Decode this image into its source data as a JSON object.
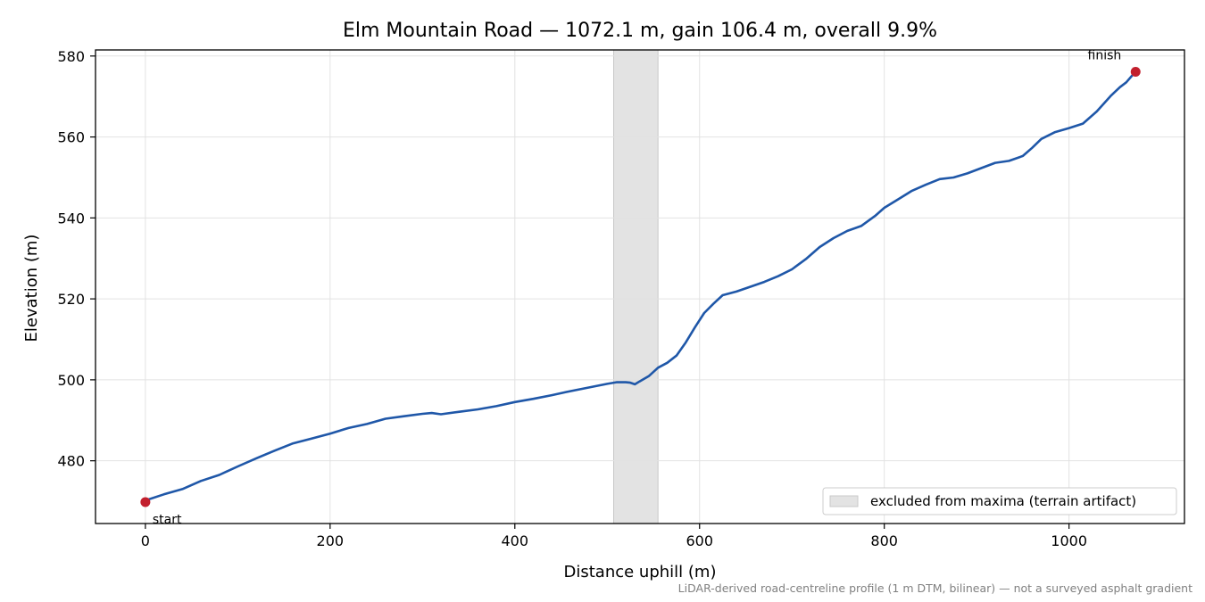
{
  "chart_data": {
    "type": "line",
    "title": "Elm Mountain Road — 1072.1 m, gain 106.4 m, overall 9.9%",
    "xlabel": "Distance uphill (m)",
    "ylabel": "Elevation (m)",
    "xlim": [
      -54,
      1125
    ],
    "ylim": [
      464.5,
      581.5
    ],
    "xticks": [
      0,
      200,
      400,
      600,
      800,
      1000
    ],
    "yticks": [
      480,
      500,
      520,
      540,
      560,
      580
    ],
    "grid": true,
    "legend_position": "bottom-right",
    "series": [
      {
        "color": "#1f57a8",
        "points": [
          [
            0,
            470.2
          ],
          [
            20,
            471.7
          ],
          [
            40,
            473.0
          ],
          [
            60,
            475.0
          ],
          [
            80,
            476.5
          ],
          [
            100,
            478.6
          ],
          [
            120,
            480.6
          ],
          [
            140,
            482.5
          ],
          [
            160,
            484.3
          ],
          [
            180,
            485.5
          ],
          [
            200,
            486.7
          ],
          [
            220,
            488.1
          ],
          [
            240,
            489.1
          ],
          [
            260,
            490.4
          ],
          [
            280,
            491.0
          ],
          [
            300,
            491.6
          ],
          [
            310,
            491.8
          ],
          [
            320,
            491.5
          ],
          [
            340,
            492.1
          ],
          [
            360,
            492.7
          ],
          [
            380,
            493.5
          ],
          [
            400,
            494.5
          ],
          [
            420,
            495.3
          ],
          [
            440,
            496.2
          ],
          [
            460,
            497.2
          ],
          [
            480,
            498.1
          ],
          [
            500,
            499.0
          ],
          [
            510,
            499.4
          ],
          [
            520,
            499.4
          ],
          [
            525,
            499.3
          ],
          [
            530,
            498.9
          ],
          [
            535,
            499.6
          ],
          [
            545,
            500.9
          ],
          [
            555,
            503.0
          ],
          [
            565,
            504.2
          ],
          [
            575,
            506.0
          ],
          [
            585,
            509.2
          ],
          [
            595,
            513.0
          ],
          [
            605,
            516.5
          ],
          [
            615,
            518.8
          ],
          [
            625,
            520.9
          ],
          [
            640,
            521.8
          ],
          [
            655,
            523.0
          ],
          [
            670,
            524.2
          ],
          [
            685,
            525.6
          ],
          [
            700,
            527.3
          ],
          [
            715,
            529.8
          ],
          [
            730,
            532.8
          ],
          [
            745,
            535.0
          ],
          [
            760,
            536.8
          ],
          [
            775,
            538.0
          ],
          [
            790,
            540.5
          ],
          [
            800,
            542.5
          ],
          [
            815,
            544.6
          ],
          [
            830,
            546.7
          ],
          [
            845,
            548.2
          ],
          [
            860,
            549.6
          ],
          [
            875,
            550.0
          ],
          [
            890,
            551.0
          ],
          [
            905,
            552.3
          ],
          [
            920,
            553.6
          ],
          [
            935,
            554.1
          ],
          [
            950,
            555.3
          ],
          [
            960,
            557.3
          ],
          [
            970,
            559.5
          ],
          [
            985,
            561.2
          ],
          [
            1000,
            562.2
          ],
          [
            1015,
            563.3
          ],
          [
            1030,
            566.3
          ],
          [
            1045,
            570.1
          ],
          [
            1055,
            572.3
          ],
          [
            1062,
            573.5
          ],
          [
            1072.1,
            576.2
          ]
        ]
      }
    ],
    "markers": [
      {
        "label": "start",
        "x": 0,
        "y": 469.8,
        "color": "#c21f2d"
      },
      {
        "label": "finish",
        "x": 1072.1,
        "y": 576.1,
        "color": "#c21f2d"
      }
    ],
    "excluded_band": {
      "x0": 507,
      "x1": 555,
      "label": "excluded from maxima (terrain artifact)",
      "color": "#e3e3e3"
    },
    "footnote": "LiDAR-derived road-centreline profile (1 m DTM, bilinear) — not a surveyed asphalt gradient"
  }
}
